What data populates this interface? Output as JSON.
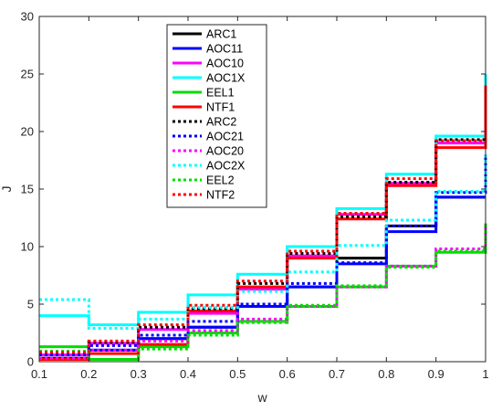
{
  "chart_data": {
    "type": "line",
    "step": true,
    "title": "",
    "xlabel": "w",
    "ylabel": "J",
    "xlim": [
      0.1,
      1
    ],
    "ylim": [
      0,
      30
    ],
    "xticks": [
      "0.1",
      "0.2",
      "0.3",
      "0.4",
      "0.5",
      "0.6",
      "0.7",
      "0.8",
      "0.9",
      "1"
    ],
    "yticks": [
      "0",
      "5",
      "10",
      "15",
      "20",
      "25",
      "30"
    ],
    "grid": false,
    "legend_position": "top-center",
    "x_edges": [
      0.1,
      0.2,
      0.3,
      0.4,
      0.5,
      0.6,
      0.7,
      0.8,
      0.9,
      1.0
    ],
    "series": [
      {
        "name": "ARC1",
        "color": "#000000",
        "dash": "solid",
        "values": [
          0.3,
          1.0,
          2.0,
          3.0,
          4.8,
          6.5,
          9.0,
          11.8,
          14.3
        ],
        "end": 14.3
      },
      {
        "name": "AOC11",
        "color": "#0000ff",
        "dash": "solid",
        "values": [
          0.3,
          1.0,
          2.0,
          3.0,
          4.8,
          6.5,
          8.5,
          11.3,
          14.3
        ],
        "end": 14.3
      },
      {
        "name": "AOC10",
        "color": "#ff00ff",
        "dash": "solid",
        "values": [
          0.6,
          1.6,
          2.8,
          4.2,
          6.3,
          9.2,
          12.8,
          15.5,
          19.0
        ],
        "end": 19.0
      },
      {
        "name": "AOC1X",
        "color": "#00ffff",
        "dash": "solid",
        "values": [
          4.0,
          3.2,
          4.3,
          5.8,
          7.6,
          10.0,
          13.3,
          16.3,
          19.6
        ],
        "end": 25.0
      },
      {
        "name": "EEL1",
        "color": "#00dd00",
        "dash": "solid",
        "values": [
          1.3,
          0.2,
          1.3,
          2.5,
          3.5,
          4.8,
          6.5,
          8.3,
          9.5
        ],
        "end": 12.0
      },
      {
        "name": "NTF1",
        "color": "#ff0000",
        "dash": "solid",
        "values": [
          0.2,
          0.7,
          1.5,
          4.4,
          6.5,
          9.0,
          12.4,
          15.3,
          18.6
        ],
        "end": 24.0
      },
      {
        "name": "ARC2",
        "color": "#000000",
        "dash": "dotted",
        "values": [
          0.7,
          1.7,
          3.0,
          4.6,
          6.8,
          9.4,
          12.6,
          15.6,
          19.3
        ],
        "end": 19.3
      },
      {
        "name": "AOC21",
        "color": "#0000ff",
        "dash": "dotted",
        "values": [
          0.6,
          1.4,
          2.3,
          3.5,
          5.0,
          6.8,
          8.6,
          11.8,
          14.7
        ],
        "end": 18.0
      },
      {
        "name": "AOC20",
        "color": "#ff00ff",
        "dash": "dotted",
        "values": [
          0.3,
          1.0,
          1.8,
          2.7,
          3.7,
          4.8,
          6.5,
          8.3,
          9.8
        ],
        "end": 12.0
      },
      {
        "name": "AOC2X",
        "color": "#00ffff",
        "dash": "dotted",
        "values": [
          5.4,
          2.9,
          3.7,
          4.7,
          6.1,
          7.8,
          10.1,
          12.3,
          14.8
        ],
        "end": 18.0
      },
      {
        "name": "EEL2",
        "color": "#00dd00",
        "dash": "dotted",
        "values": [
          0.9,
          0.2,
          1.1,
          2.3,
          3.4,
          4.9,
          6.6,
          8.2,
          9.6
        ],
        "end": 12.0
      },
      {
        "name": "NTF2",
        "color": "#ff0000",
        "dash": "dotted",
        "values": [
          0.8,
          1.8,
          3.2,
          4.9,
          7.0,
          9.6,
          12.9,
          15.9,
          19.2
        ],
        "end": 19.2
      }
    ]
  }
}
